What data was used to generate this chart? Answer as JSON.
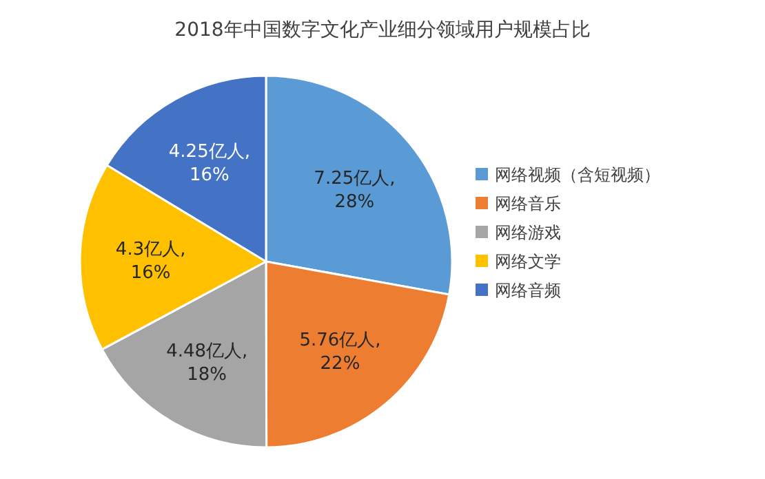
{
  "chart_data": {
    "type": "pie",
    "title": "2018年中国数字文化产业细分领域用户规模占比",
    "categories": [
      "网络视频（含短视频）",
      "网络音乐",
      "网络游戏",
      "网络文学",
      "网络音频"
    ],
    "values": [
      7.25,
      5.76,
      4.48,
      4.3,
      4.25
    ],
    "colors": [
      "#5b9bd5",
      "#ed7d31",
      "#a5a5a5",
      "#ffc000",
      "#4472c4"
    ],
    "value_labels": [
      "7.25亿人,\n28%",
      "5.76亿人,\n22%",
      "4.48亿人,\n18%",
      "4.3亿人,\n16%",
      "4.25亿人,\n16%"
    ],
    "legend": "right"
  }
}
